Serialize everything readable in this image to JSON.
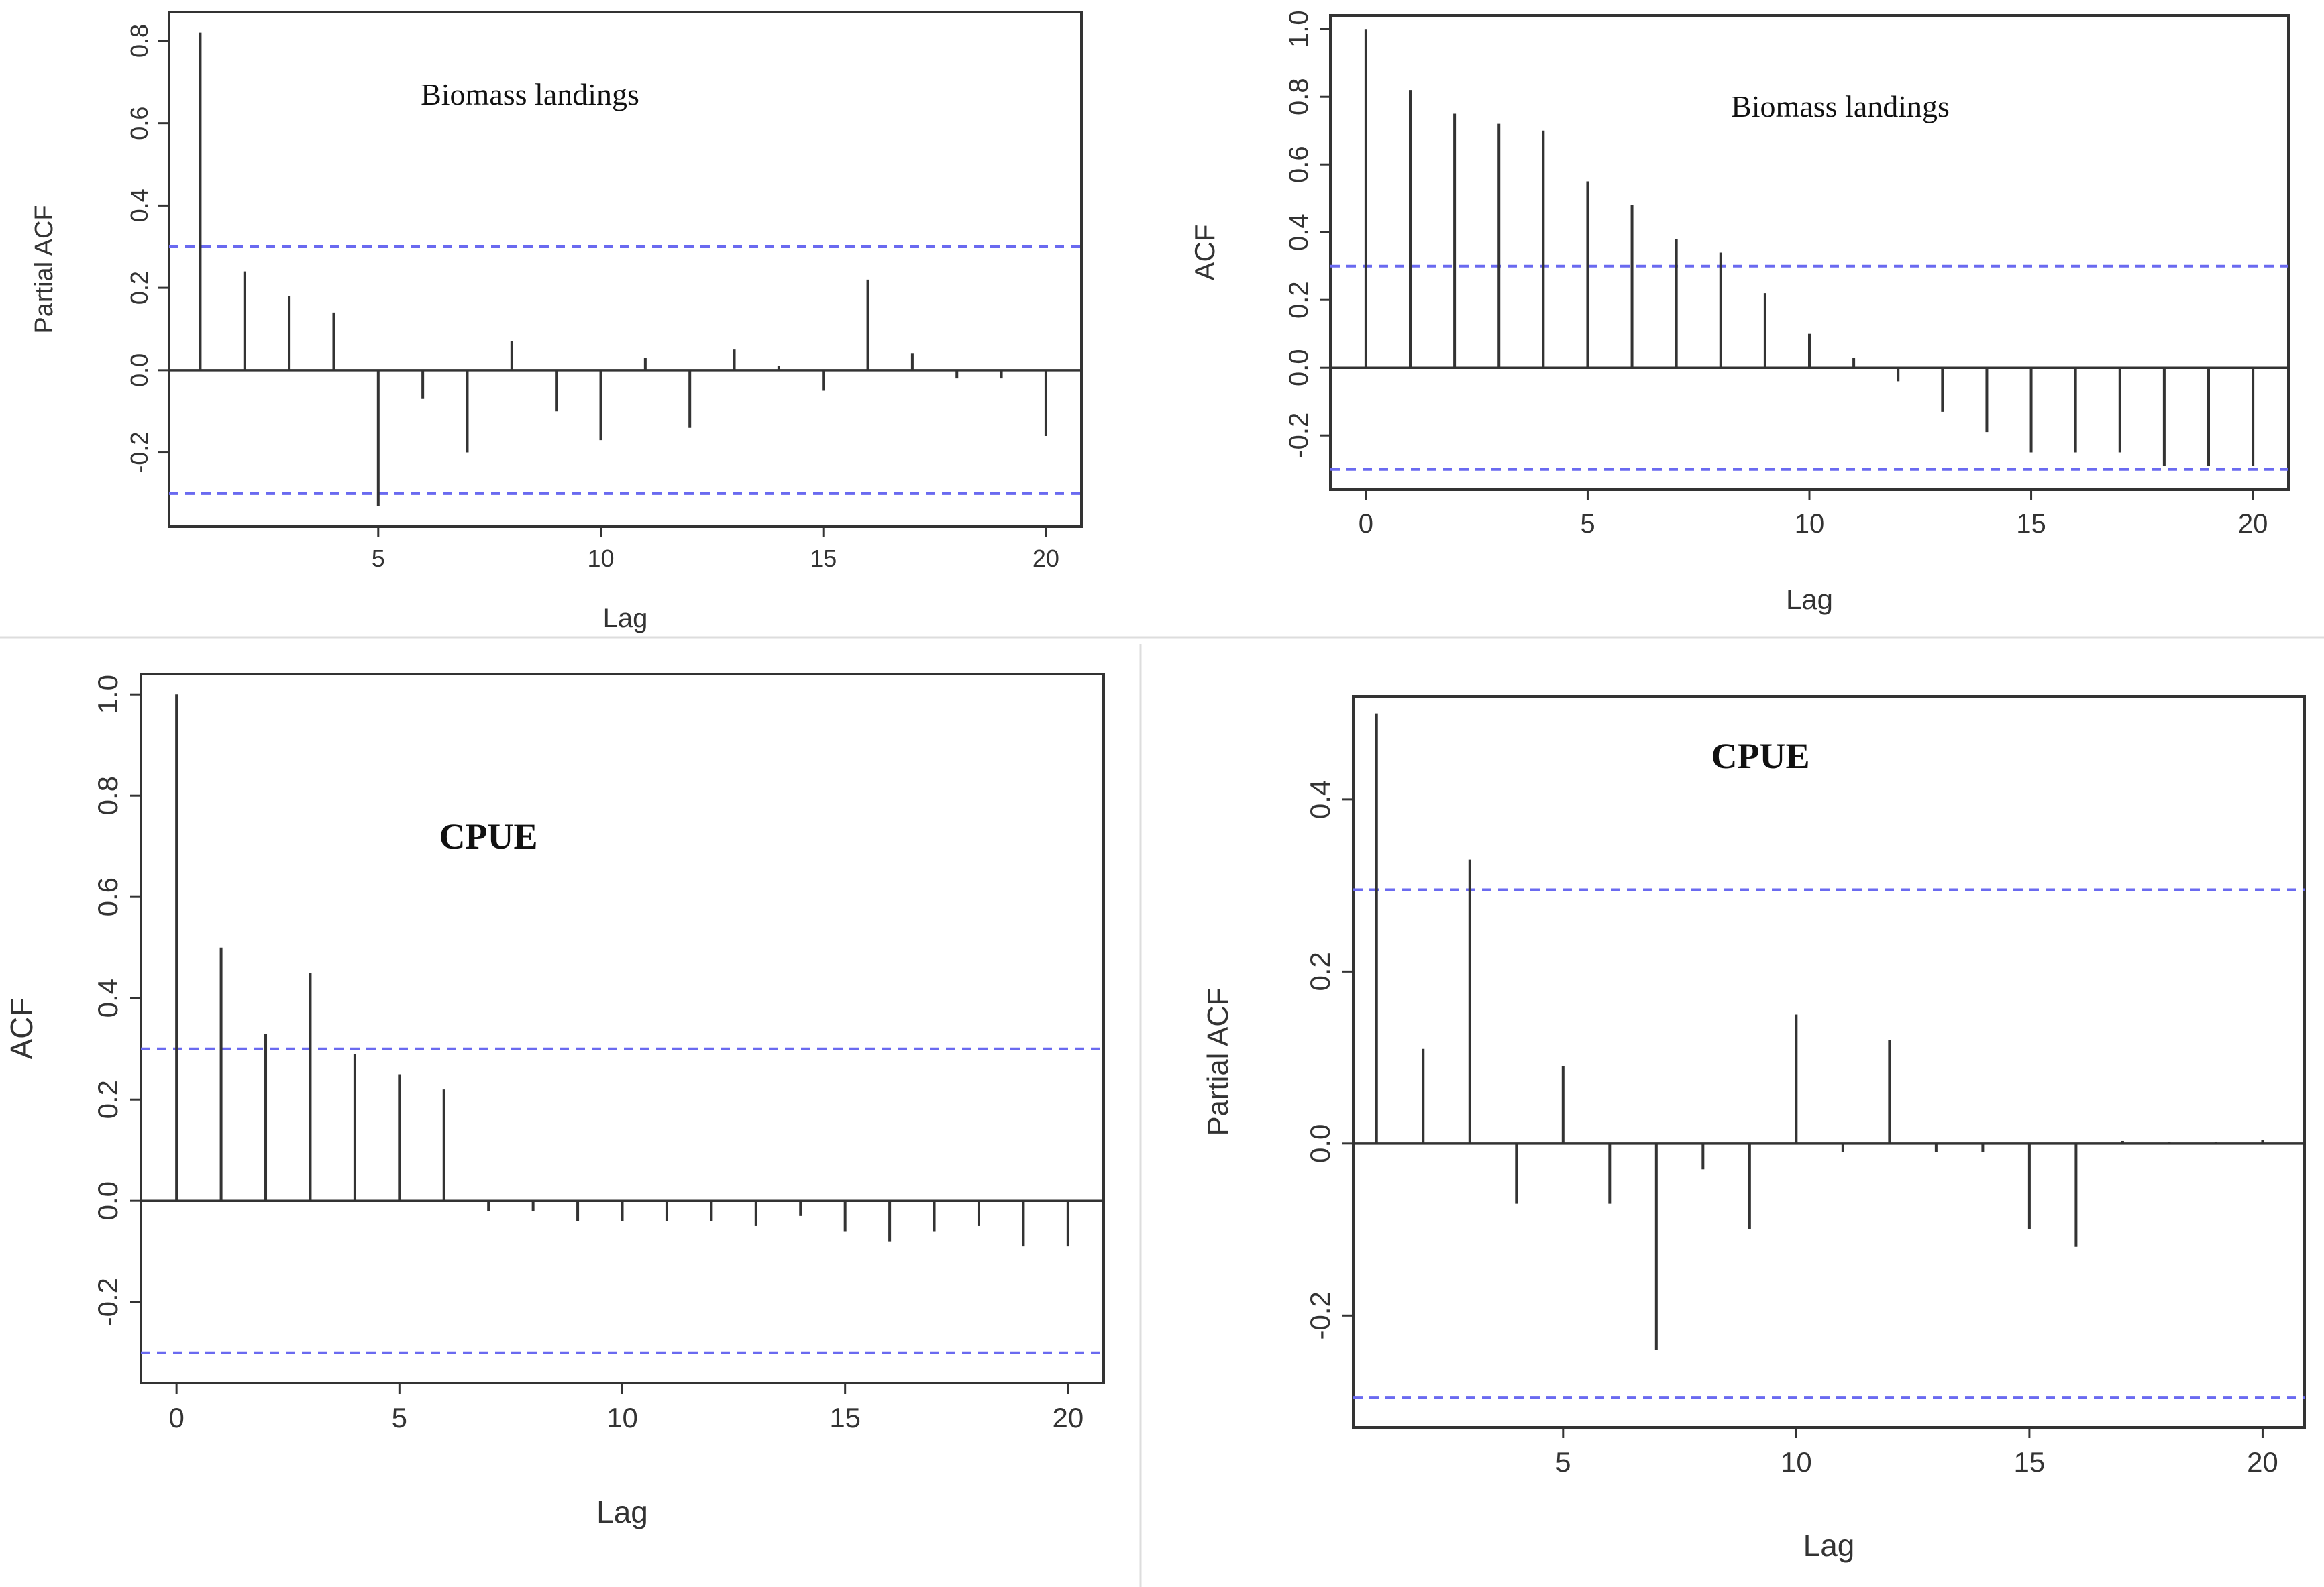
{
  "figure": {
    "separator_color": "#dddddd"
  },
  "chart_data": [
    {
      "id": "top-left",
      "type": "bar",
      "plot": "pacf",
      "title": "Biomass landings",
      "title_bold": false,
      "xlabel": "Lag",
      "ylabel": "Partial ACF",
      "lags": [
        1,
        2,
        3,
        4,
        5,
        6,
        7,
        8,
        9,
        10,
        11,
        12,
        13,
        14,
        15,
        16,
        17,
        18,
        19,
        20
      ],
      "values": [
        0.82,
        0.24,
        0.18,
        0.14,
        -0.33,
        -0.07,
        -0.2,
        0.07,
        -0.1,
        -0.17,
        0.03,
        -0.14,
        0.05,
        0.01,
        -0.05,
        0.22,
        0.04,
        -0.02,
        -0.02,
        -0.16
      ],
      "ci": 0.3,
      "xlim": [
        0.3,
        20.8
      ],
      "ylim": [
        -0.38,
        0.87
      ],
      "xticks": [
        "5",
        "10",
        "15",
        "20"
      ],
      "yticks": [
        "-0.2",
        "0.0",
        "0.2",
        "0.4",
        "0.6",
        "0.8"
      ],
      "line_color": "#333333",
      "ci_color": "#6a6af0"
    },
    {
      "id": "top-right",
      "type": "bar",
      "plot": "acf",
      "title": "Biomass landings",
      "title_bold": false,
      "xlabel": "Lag",
      "ylabel": "ACF",
      "lags": [
        0,
        1,
        2,
        3,
        4,
        5,
        6,
        7,
        8,
        9,
        10,
        11,
        12,
        13,
        14,
        15,
        16,
        17,
        18,
        19,
        20
      ],
      "values": [
        1.0,
        0.82,
        0.75,
        0.72,
        0.7,
        0.55,
        0.48,
        0.38,
        0.34,
        0.22,
        0.1,
        0.03,
        -0.04,
        -0.13,
        -0.19,
        -0.25,
        -0.25,
        -0.25,
        -0.29,
        -0.29,
        -0.29
      ],
      "ci": 0.3,
      "xlim": [
        -0.8,
        20.8
      ],
      "ylim": [
        -0.36,
        1.04
      ],
      "xticks": [
        "0",
        "5",
        "10",
        "15",
        "20"
      ],
      "yticks": [
        "-0.2",
        "0.0",
        "0.2",
        "0.4",
        "0.6",
        "0.8",
        "1.0"
      ],
      "line_color": "#333333",
      "ci_color": "#6a6af0"
    },
    {
      "id": "bottom-left",
      "type": "bar",
      "plot": "acf",
      "title": "CPUE",
      "title_bold": true,
      "xlabel": "Lag",
      "ylabel": "ACF",
      "lags": [
        0,
        1,
        2,
        3,
        4,
        5,
        6,
        7,
        8,
        9,
        10,
        11,
        12,
        13,
        14,
        15,
        16,
        17,
        18,
        19,
        20
      ],
      "values": [
        1.0,
        0.5,
        0.33,
        0.45,
        0.29,
        0.25,
        0.22,
        -0.02,
        -0.02,
        -0.04,
        -0.04,
        -0.04,
        -0.04,
        -0.05,
        -0.03,
        -0.06,
        -0.08,
        -0.06,
        -0.05,
        -0.09,
        -0.09
      ],
      "ci": 0.3,
      "xlim": [
        -0.8,
        20.8
      ],
      "ylim": [
        -0.36,
        1.04
      ],
      "xticks": [
        "0",
        "5",
        "10",
        "15",
        "20"
      ],
      "yticks": [
        "-0.2",
        "0.0",
        "0.2",
        "0.4",
        "0.6",
        "0.8",
        "1.0"
      ],
      "line_color": "#333333",
      "ci_color": "#6a6af0"
    },
    {
      "id": "bottom-right",
      "type": "bar",
      "plot": "pacf",
      "title": "CPUE",
      "title_bold": true,
      "xlabel": "Lag",
      "ylabel": "Partial ACF",
      "lags": [
        1,
        2,
        3,
        4,
        5,
        6,
        7,
        8,
        9,
        10,
        11,
        12,
        13,
        14,
        15,
        16,
        17,
        18,
        19,
        20
      ],
      "values": [
        0.5,
        0.11,
        0.33,
        -0.07,
        0.09,
        -0.07,
        -0.24,
        -0.03,
        -0.1,
        0.15,
        -0.01,
        0.12,
        -0.01,
        -0.01,
        -0.1,
        -0.12,
        0.003,
        0.002,
        0.002,
        0.004
      ],
      "ci": 0.295,
      "xlim": [
        0.5,
        20.9
      ],
      "ylim": [
        -0.33,
        0.52
      ],
      "xticks": [
        "5",
        "10",
        "15",
        "20"
      ],
      "yticks": [
        "-0.2",
        "0.0",
        "0.2",
        "0.4"
      ],
      "line_color": "#333333",
      "ci_color": "#6a6af0"
    }
  ]
}
